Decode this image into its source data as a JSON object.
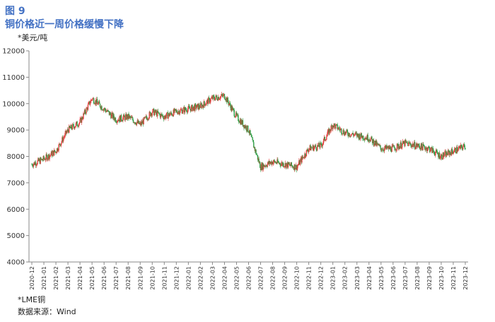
{
  "figure_number": "图 9",
  "title": "铜价格近一周价格缓慢下降",
  "unit_label": "*美元/吨",
  "note": "*LME铜",
  "source": "数据来源：Wind",
  "chart_data": {
    "type": "candlestick",
    "series_name": "LME铜",
    "ylabel": "美元/吨",
    "ylim": [
      4000,
      12000
    ],
    "yticks": [
      4000,
      5000,
      6000,
      7000,
      8000,
      9000,
      10000,
      11000,
      12000
    ],
    "x_tick_labels": [
      "2020-12",
      "2021-01",
      "2021-02",
      "2021-03",
      "2021-04",
      "2021-05",
      "2021-06",
      "2021-07",
      "2021-08",
      "2021-09",
      "2021-10",
      "2021-11",
      "2021-12",
      "2022-01",
      "2022-02",
      "2022-03",
      "2022-04",
      "2022-05",
      "2022-06",
      "2022-07",
      "2022-08",
      "2022-09",
      "2022-10",
      "2022-11",
      "2022-12",
      "2023-01",
      "2023-02",
      "2023-03",
      "2023-04",
      "2023-05",
      "2023-06",
      "2023-07",
      "2023-08",
      "2023-09",
      "2023-10",
      "2023-11",
      "2023-12"
    ],
    "up_color": "#E23B3B",
    "down_color": "#2E9E45",
    "monthly_close_approx": [
      7700,
      7900,
      8200,
      9000,
      9300,
      10200,
      9800,
      9400,
      9500,
      9200,
      9700,
      9500,
      9700,
      9800,
      9900,
      10200,
      10300,
      9500,
      9000,
      7600,
      7800,
      7700,
      7600,
      8300,
      8400,
      9200,
      8900,
      8800,
      8700,
      8300,
      8300,
      8500,
      8400,
      8300,
      8000,
      8200,
      8400
    ]
  }
}
